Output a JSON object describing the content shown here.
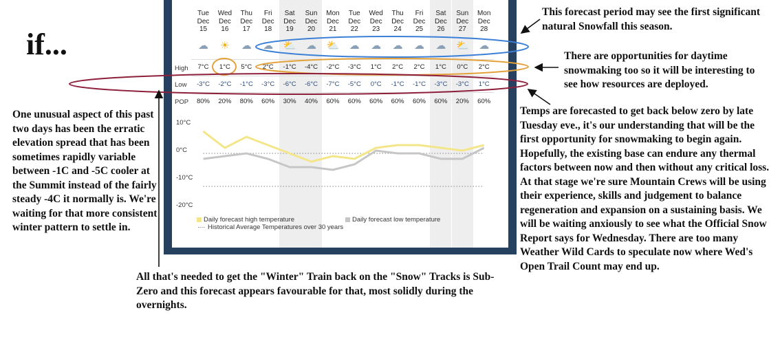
{
  "title": "if...",
  "forecast": {
    "days": [
      {
        "dow": "Tue",
        "mon": "Dec",
        "day": "15",
        "icon": "snow-cloud-icon",
        "glyph": "☁",
        "weekend": false
      },
      {
        "dow": "Wed",
        "mon": "Dec",
        "day": "16",
        "icon": "sun-icon",
        "glyph": "☀",
        "weekend": false
      },
      {
        "dow": "Thu",
        "mon": "Dec",
        "day": "17",
        "icon": "snow-cloud-icon",
        "glyph": "☁",
        "weekend": false
      },
      {
        "dow": "Fri",
        "mon": "Dec",
        "day": "18",
        "icon": "snow-cloud-icon",
        "glyph": "☁",
        "weekend": false
      },
      {
        "dow": "Sat",
        "mon": "Dec",
        "day": "19",
        "icon": "sun-cloud-icon",
        "glyph": "⛅",
        "weekend": true
      },
      {
        "dow": "Sun",
        "mon": "Dec",
        "day": "20",
        "icon": "snow-cloud-icon",
        "glyph": "☁",
        "weekend": true
      },
      {
        "dow": "Mon",
        "mon": "Dec",
        "day": "21",
        "icon": "sun-cloud-icon",
        "glyph": "⛅",
        "weekend": false
      },
      {
        "dow": "Tue",
        "mon": "Dec",
        "day": "22",
        "icon": "snow-cloud-icon",
        "glyph": "☁",
        "weekend": false
      },
      {
        "dow": "Wed",
        "mon": "Dec",
        "day": "23",
        "icon": "snow-cloud-icon",
        "glyph": "☁",
        "weekend": false
      },
      {
        "dow": "Thu",
        "mon": "Dec",
        "day": "24",
        "icon": "snow-cloud-icon",
        "glyph": "☁",
        "weekend": false
      },
      {
        "dow": "Fri",
        "mon": "Dec",
        "day": "25",
        "icon": "snow-cloud-icon",
        "glyph": "☁",
        "weekend": false
      },
      {
        "dow": "Sat",
        "mon": "Dec",
        "day": "26",
        "icon": "snow-cloud-icon",
        "glyph": "☁",
        "weekend": true
      },
      {
        "dow": "Sun",
        "mon": "Dec",
        "day": "27",
        "icon": "sun-cloud-icon",
        "glyph": "⛅",
        "weekend": true
      },
      {
        "dow": "Mon",
        "mon": "Dec",
        "day": "28",
        "icon": "snow-cloud-icon",
        "glyph": "☁",
        "weekend": false
      }
    ],
    "row_labels": {
      "high": "High",
      "low": "Low",
      "pop": "POP"
    },
    "high_text": [
      "7°C",
      "1°C",
      "5°C",
      "2°C",
      "-1°C",
      "-4°C",
      "-2°C",
      "-3°C",
      "1°C",
      "2°C",
      "2°C",
      "1°C",
      "0°C",
      "2°C"
    ],
    "low_text": [
      "-3°C",
      "-2°C",
      "-1°C",
      "-3°C",
      "-6°C",
      "-6°C",
      "-7°C",
      "-5°C",
      "0°C",
      "-1°C",
      "-1°C",
      "-3°C",
      "-3°C",
      "1°C"
    ],
    "pop_text": [
      "80%",
      "20%",
      "80%",
      "60%",
      "30%",
      "40%",
      "60%",
      "60%",
      "60%",
      "60%",
      "60%",
      "60%",
      "20%",
      "60%"
    ]
  },
  "chart_data": {
    "type": "line",
    "x": [
      "Dec 15",
      "Dec 16",
      "Dec 17",
      "Dec 18",
      "Dec 19",
      "Dec 20",
      "Dec 21",
      "Dec 22",
      "Dec 23",
      "Dec 24",
      "Dec 25",
      "Dec 26",
      "Dec 27",
      "Dec 28"
    ],
    "series": [
      {
        "name": "Daily forecast high temperature",
        "values": [
          7,
          1,
          5,
          2,
          -1,
          -4,
          -2,
          -3,
          1,
          2,
          2,
          1,
          0,
          2
        ]
      },
      {
        "name": "Daily forecast low temperature",
        "values": [
          -3,
          -2,
          -1,
          -3,
          -6,
          -6,
          -7,
          -5,
          0,
          -1,
          -1,
          -3,
          -3,
          1
        ]
      },
      {
        "name": "Historical Average Temperatures over 30 years",
        "values": [
          -1,
          -1,
          -1,
          -1,
          -1,
          -1,
          -1,
          -1,
          -1,
          -1,
          -1,
          -1,
          -1,
          -1
        ]
      },
      {
        "values": [
          -13,
          -13,
          -13,
          -13,
          -13,
          -13,
          -13,
          -13,
          -13,
          -13,
          -13,
          -13,
          -13,
          -13
        ]
      }
    ],
    "yticks": [
      "10°C",
      "0°C",
      "-10°C",
      "-20°C"
    ],
    "ylim": [
      -20,
      10
    ],
    "legend": "bottom",
    "colors": {
      "high": "#f3e68a",
      "low": "#c6c6c6",
      "historical": "#9a9a9a",
      "weekend_shade": "#eeeeee"
    }
  },
  "annotations": {
    "snowfall": "This forecast period may see the first significant natural Snowfall this season.",
    "snowmaking_day": "There are opportunities for daytime snowmaking too so it will be interesting to see how resources are deployed.",
    "temps": "Temps are forecasted to get back below zero by late Tuesday eve., it's our understanding that will be the first opportunity for snowmaking to begin again. Hopefully, the existing base can endure any thermal factors between now and then without any critical loss. At that stage we're sure Mountain Crews will be using their experience, skills and judgement to balance regeneration and expansion on a sustaining basis. We will be waiting anxiously to see what the Official Snow Report says for Wednesday. There are too many Weather Wild Cards to speculate now where Wed's Open Trail Count may end up.",
    "elevation": "One unusual aspect of this past two days has been the erratic elevation spread that has been sometimes rapidly variable between -1C and -5C cooler at the Summit instead of the fairly steady -4C it normally is. We're waiting for that more consistent winter pattern to settle in.",
    "bottom": "All that's needed to get the \"Winter\" Train back on the \"Snow\" Tracks is Sub-Zero and this forecast appears favourable for that, most solidly during the overnights."
  },
  "colors": {
    "frame": "#26415f",
    "blue_oval": "#3b7fd6",
    "orange_oval": "#e3a13a",
    "red_oval": "#8e1f3b"
  }
}
